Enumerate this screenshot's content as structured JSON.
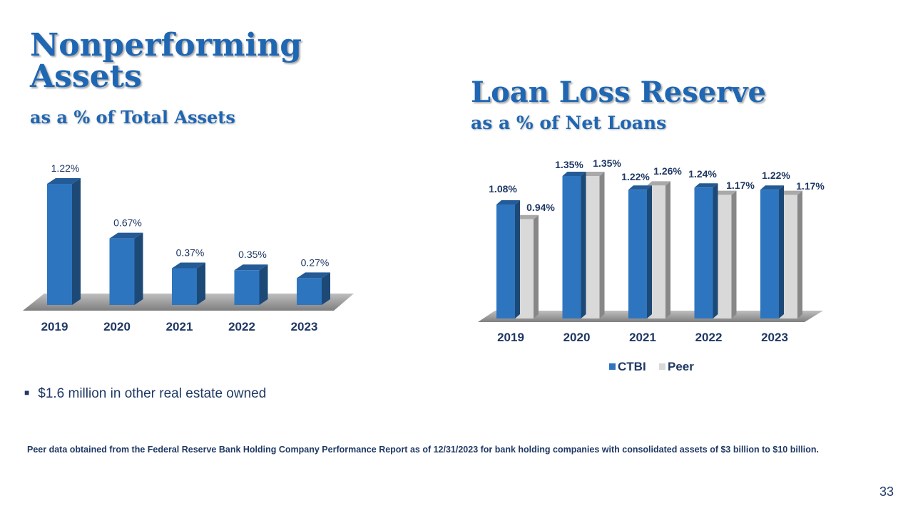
{
  "slide": {
    "left_title": "Nonperforming Assets",
    "left_subtitle": "as a % of Total Assets",
    "right_title": "Loan Loss Reserve",
    "right_subtitle": "as a % of Net Loans",
    "bullet": "$1.6 million in other real estate owned",
    "footnote": "Peer data obtained from the Federal Reserve Bank Holding Company Performance Report as of 12/31/2023 for bank holding companies with consolidated assets of $3 billion to $10 billion.",
    "page_number": "33"
  },
  "colors": {
    "title": "#1f66b3",
    "ctbi_bar": "#2e75c0",
    "peer_bar": "#d9d9d9",
    "text": "#1f3864"
  },
  "chart_data": [
    {
      "type": "bar",
      "title": "Nonperforming Assets",
      "subtitle": "as a % of Total Assets",
      "categories": [
        "2019",
        "2020",
        "2021",
        "2022",
        "2023"
      ],
      "values": [
        1.22,
        0.67,
        0.37,
        0.35,
        0.27
      ],
      "labels": [
        "1.22%",
        "0.67%",
        "0.37%",
        "0.35%",
        "0.27%"
      ],
      "ylim": [
        0,
        1.3
      ],
      "grid": false,
      "legend": "none"
    },
    {
      "type": "bar",
      "title": "Loan Loss Reserve",
      "subtitle": "as a % of Net Loans",
      "categories": [
        "2019",
        "2020",
        "2021",
        "2022",
        "2023"
      ],
      "series": [
        {
          "name": "CTBI",
          "values": [
            1.08,
            1.35,
            1.22,
            1.24,
            1.22
          ],
          "labels": [
            "1.08%",
            "1.35%",
            "1.22%",
            "1.24%",
            "1.22%"
          ]
        },
        {
          "name": "Peer",
          "values": [
            0.94,
            1.35,
            1.26,
            1.17,
            1.17
          ],
          "labels": [
            "0.94%",
            "1.35%",
            "1.26%",
            "1.17%",
            "1.17%"
          ]
        }
      ],
      "ylim": [
        0,
        1.4
      ],
      "grid": false,
      "legend": "bottom"
    }
  ]
}
